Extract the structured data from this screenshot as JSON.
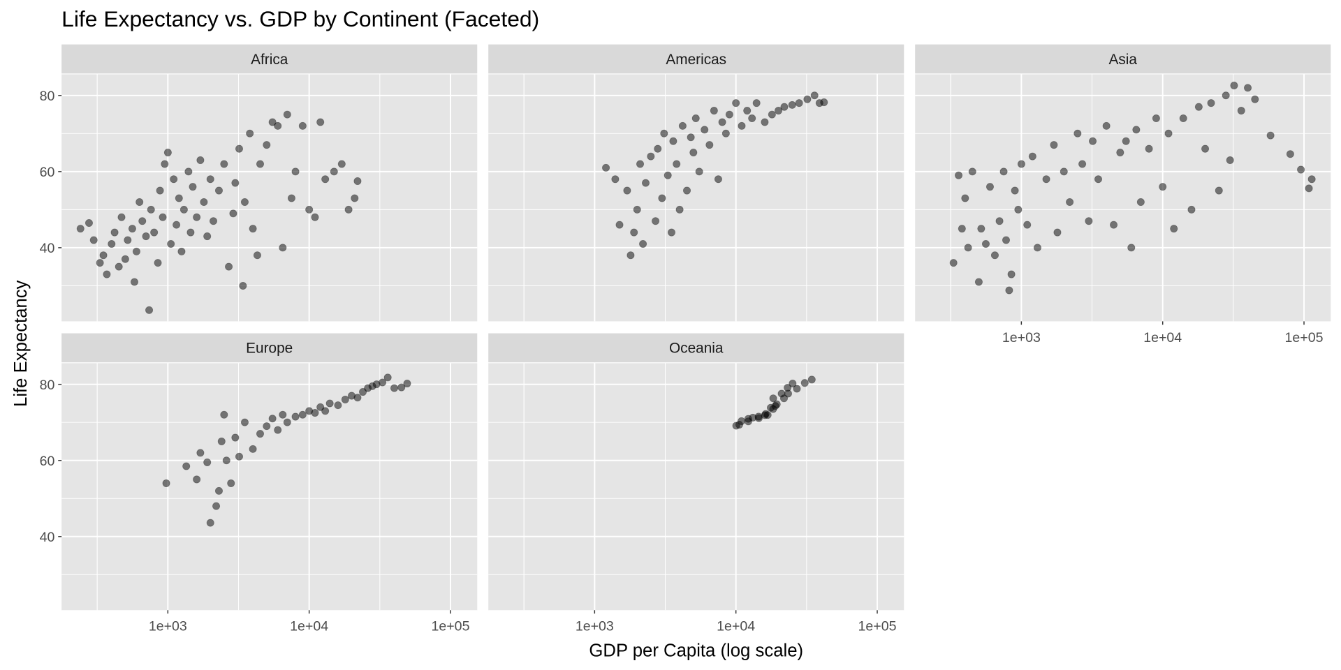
{
  "chart_data": {
    "type": "scatter",
    "title": "Life Expectancy vs. GDP by Continent (Faceted)",
    "xlabel": "GDP per Capita (log scale)",
    "ylabel": "Life Expectancy",
    "x_scale": "log10",
    "xlim": [
      177,
      154600
    ],
    "ylim": [
      20.65,
      85.55
    ],
    "x_ticks": [
      1000,
      10000,
      100000
    ],
    "x_tick_labels": [
      "1e+03",
      "1e+04",
      "1e+05"
    ],
    "y_ticks": [
      40,
      60,
      80
    ],
    "y_tick_labels": [
      "40",
      "60",
      "80"
    ],
    "grid": true,
    "point_color": "#000000",
    "point_alpha": 0.5,
    "panel_background": "#E5E5E5",
    "strip_background": "#D9D9D9",
    "facets": [
      {
        "name": "Africa",
        "points": [
          [
            241,
            45
          ],
          [
            277,
            46.5
          ],
          [
            299,
            42
          ],
          [
            331,
            36
          ],
          [
            350,
            38
          ],
          [
            370,
            33
          ],
          [
            400,
            41
          ],
          [
            420,
            44
          ],
          [
            450,
            35
          ],
          [
            470,
            48
          ],
          [
            500,
            37
          ],
          [
            520,
            42
          ],
          [
            560,
            45
          ],
          [
            580,
            31
          ],
          [
            600,
            39
          ],
          [
            630,
            52
          ],
          [
            660,
            47
          ],
          [
            700,
            43
          ],
          [
            737,
            23.6
          ],
          [
            760,
            50
          ],
          [
            800,
            44
          ],
          [
            850,
            36
          ],
          [
            880,
            55
          ],
          [
            920,
            48
          ],
          [
            950,
            62
          ],
          [
            1000,
            65
          ],
          [
            1050,
            41
          ],
          [
            1100,
            58
          ],
          [
            1150,
            46
          ],
          [
            1200,
            53
          ],
          [
            1250,
            39
          ],
          [
            1300,
            50
          ],
          [
            1400,
            60
          ],
          [
            1450,
            44
          ],
          [
            1500,
            56
          ],
          [
            1600,
            48
          ],
          [
            1700,
            63
          ],
          [
            1800,
            52
          ],
          [
            1900,
            43
          ],
          [
            2000,
            58
          ],
          [
            2100,
            47
          ],
          [
            2300,
            55
          ],
          [
            2500,
            62
          ],
          [
            2700,
            35
          ],
          [
            2900,
            49
          ],
          [
            3000,
            57
          ],
          [
            3200,
            66
          ],
          [
            3400,
            30
          ],
          [
            3500,
            52
          ],
          [
            3800,
            70
          ],
          [
            4000,
            45
          ],
          [
            4300,
            38
          ],
          [
            4500,
            62
          ],
          [
            5000,
            67
          ],
          [
            5500,
            73
          ],
          [
            6000,
            72
          ],
          [
            6500,
            40
          ],
          [
            7000,
            75
          ],
          [
            7500,
            53
          ],
          [
            8000,
            60
          ],
          [
            9000,
            72
          ],
          [
            10000,
            50
          ],
          [
            11000,
            48
          ],
          [
            12000,
            73
          ],
          [
            13000,
            58
          ],
          [
            15000,
            60
          ],
          [
            17000,
            62
          ],
          [
            19000,
            50
          ],
          [
            21000,
            53
          ],
          [
            22000,
            57.5
          ]
        ]
      },
      {
        "name": "Americas",
        "points": [
          [
            1202,
            61
          ],
          [
            1400,
            58
          ],
          [
            1500,
            46
          ],
          [
            1700,
            55
          ],
          [
            1800,
            38
          ],
          [
            1900,
            44
          ],
          [
            2000,
            50
          ],
          [
            2100,
            62
          ],
          [
            2200,
            41
          ],
          [
            2300,
            57
          ],
          [
            2500,
            64
          ],
          [
            2700,
            47
          ],
          [
            2800,
            66
          ],
          [
            3000,
            53
          ],
          [
            3100,
            70
          ],
          [
            3300,
            59
          ],
          [
            3500,
            44
          ],
          [
            3600,
            68
          ],
          [
            3800,
            62
          ],
          [
            4000,
            50
          ],
          [
            4200,
            72
          ],
          [
            4500,
            55
          ],
          [
            4800,
            69
          ],
          [
            5000,
            65
          ],
          [
            5200,
            74
          ],
          [
            5500,
            60
          ],
          [
            6000,
            71
          ],
          [
            6500,
            67
          ],
          [
            7000,
            76
          ],
          [
            7500,
            58
          ],
          [
            8000,
            73
          ],
          [
            8500,
            70
          ],
          [
            9000,
            75
          ],
          [
            10000,
            78
          ],
          [
            11000,
            72
          ],
          [
            12000,
            76
          ],
          [
            13000,
            74
          ],
          [
            14000,
            78
          ],
          [
            16000,
            73
          ],
          [
            18000,
            75
          ],
          [
            20000,
            76
          ],
          [
            22000,
            77
          ],
          [
            25000,
            77.5
          ],
          [
            28000,
            78
          ],
          [
            32000,
            79
          ],
          [
            36000,
            80
          ],
          [
            39000,
            78
          ],
          [
            42000,
            78.2
          ]
        ]
      },
      {
        "name": "Asia",
        "points": [
          [
            331,
            36
          ],
          [
            360,
            59
          ],
          [
            380,
            45
          ],
          [
            400,
            53
          ],
          [
            420,
            40
          ],
          [
            450,
            60
          ],
          [
            500,
            31
          ],
          [
            520,
            45
          ],
          [
            560,
            41
          ],
          [
            600,
            56
          ],
          [
            650,
            38
          ],
          [
            700,
            47
          ],
          [
            750,
            60
          ],
          [
            780,
            42
          ],
          [
            820,
            28.8
          ],
          [
            850,
            33
          ],
          [
            900,
            55
          ],
          [
            950,
            50
          ],
          [
            1000,
            62
          ],
          [
            1100,
            46
          ],
          [
            1200,
            64
          ],
          [
            1300,
            40
          ],
          [
            1500,
            58
          ],
          [
            1700,
            67
          ],
          [
            1800,
            44
          ],
          [
            2000,
            60
          ],
          [
            2200,
            52
          ],
          [
            2500,
            70
          ],
          [
            2700,
            62
          ],
          [
            3000,
            47
          ],
          [
            3200,
            68
          ],
          [
            3500,
            58
          ],
          [
            4000,
            72
          ],
          [
            4500,
            46
          ],
          [
            5000,
            65
          ],
          [
            5500,
            68
          ],
          [
            6000,
            40
          ],
          [
            6500,
            71
          ],
          [
            7000,
            52
          ],
          [
            8000,
            66
          ],
          [
            9000,
            74
          ],
          [
            10000,
            56
          ],
          [
            11000,
            70
          ],
          [
            12000,
            45
          ],
          [
            14000,
            74
          ],
          [
            16000,
            50
          ],
          [
            18000,
            77
          ],
          [
            20000,
            66
          ],
          [
            22000,
            78
          ],
          [
            25000,
            55
          ],
          [
            28000,
            80
          ],
          [
            30000,
            63
          ],
          [
            32000,
            82.6
          ],
          [
            36000,
            76
          ],
          [
            40000,
            82
          ],
          [
            45000,
            79
          ],
          [
            58000,
            69.5
          ],
          [
            80000,
            64.6
          ],
          [
            95000,
            60.5
          ],
          [
            108382,
            55.6
          ],
          [
            113523,
            58
          ]
        ]
      },
      {
        "name": "Europe",
        "points": [
          [
            974,
            54
          ],
          [
            1350,
            58.5
          ],
          [
            1600,
            55
          ],
          [
            1700,
            62
          ],
          [
            1900,
            59.5
          ],
          [
            2000,
            43.6
          ],
          [
            2200,
            48
          ],
          [
            2300,
            52
          ],
          [
            2400,
            65
          ],
          [
            2500,
            72
          ],
          [
            2600,
            60
          ],
          [
            2800,
            54
          ],
          [
            3000,
            66
          ],
          [
            3200,
            61
          ],
          [
            3500,
            70
          ],
          [
            4000,
            63
          ],
          [
            4500,
            67
          ],
          [
            5000,
            69
          ],
          [
            5500,
            71
          ],
          [
            6000,
            68
          ],
          [
            6500,
            72
          ],
          [
            7000,
            70
          ],
          [
            8000,
            71.5
          ],
          [
            9000,
            72
          ],
          [
            10000,
            73
          ],
          [
            11000,
            72.5
          ],
          [
            12000,
            74
          ],
          [
            13000,
            73
          ],
          [
            14000,
            75
          ],
          [
            16000,
            74.5
          ],
          [
            18000,
            76
          ],
          [
            20000,
            77
          ],
          [
            22000,
            76.5
          ],
          [
            24000,
            78
          ],
          [
            26000,
            79
          ],
          [
            28000,
            79.5
          ],
          [
            30000,
            80
          ],
          [
            33000,
            80.5
          ],
          [
            36000,
            81.8
          ],
          [
            40000,
            79
          ],
          [
            45000,
            79.2
          ],
          [
            49357,
            80.2
          ]
        ]
      },
      {
        "name": "Oceania",
        "points": [
          [
            10040,
            69.12
          ],
          [
            10950,
            70.33
          ],
          [
            12217,
            70.93
          ],
          [
            14526,
            71.1
          ],
          [
            16789,
            71.93
          ],
          [
            18334,
            73.49
          ],
          [
            19477,
            74.74
          ],
          [
            21889,
            76.32
          ],
          [
            23425,
            77.56
          ],
          [
            26998,
            78.83
          ],
          [
            30688,
            80.37
          ],
          [
            34435,
            81.235
          ],
          [
            10557,
            69.39
          ],
          [
            12247,
            70.26
          ],
          [
            13176,
            71.24
          ],
          [
            14464,
            71.52
          ],
          [
            16046,
            71.89
          ],
          [
            16234,
            72.22
          ],
          [
            17632,
            73.84
          ],
          [
            19007,
            74.32
          ],
          [
            18363,
            76.33
          ],
          [
            21050,
            77.55
          ],
          [
            23190,
            79.11
          ],
          [
            25185,
            80.204
          ]
        ]
      }
    ]
  }
}
